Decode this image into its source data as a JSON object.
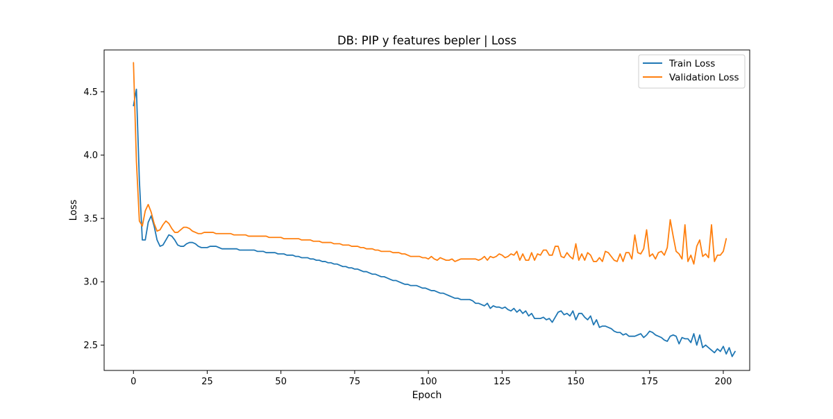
{
  "chart_data": {
    "type": "line",
    "title": "DB: PIP y features bepler | Loss",
    "xlabel": "Epoch",
    "ylabel": "Loss",
    "xlim": [
      -9.95,
      208.95
    ],
    "ylim": [
      2.3,
      4.83
    ],
    "xticks": [
      0,
      25,
      50,
      75,
      100,
      125,
      150,
      175,
      200
    ],
    "yticks": [
      2.5,
      3.0,
      3.5,
      4.0,
      4.5
    ],
    "grid": false,
    "legend_position": "top-right",
    "series": [
      {
        "name": "Train Loss",
        "color": "#1f77b4",
        "x_start": 0,
        "values": [
          4.39,
          4.52,
          3.8,
          3.33,
          3.33,
          3.47,
          3.52,
          3.44,
          3.33,
          3.28,
          3.29,
          3.33,
          3.37,
          3.36,
          3.33,
          3.29,
          3.28,
          3.28,
          3.3,
          3.31,
          3.31,
          3.3,
          3.28,
          3.27,
          3.27,
          3.27,
          3.28,
          3.28,
          3.28,
          3.27,
          3.26,
          3.26,
          3.26,
          3.26,
          3.26,
          3.26,
          3.25,
          3.25,
          3.25,
          3.25,
          3.25,
          3.25,
          3.24,
          3.24,
          3.24,
          3.23,
          3.23,
          3.23,
          3.23,
          3.22,
          3.22,
          3.22,
          3.21,
          3.21,
          3.21,
          3.2,
          3.2,
          3.19,
          3.19,
          3.19,
          3.18,
          3.18,
          3.17,
          3.17,
          3.16,
          3.16,
          3.15,
          3.15,
          3.14,
          3.14,
          3.13,
          3.12,
          3.12,
          3.11,
          3.11,
          3.1,
          3.1,
          3.09,
          3.08,
          3.08,
          3.07,
          3.06,
          3.06,
          3.05,
          3.04,
          3.04,
          3.03,
          3.02,
          3.01,
          3.01,
          3.0,
          2.99,
          2.98,
          2.98,
          2.97,
          2.97,
          2.97,
          2.96,
          2.95,
          2.95,
          2.94,
          2.93,
          2.93,
          2.92,
          2.91,
          2.91,
          2.9,
          2.89,
          2.88,
          2.87,
          2.87,
          2.86,
          2.86,
          2.86,
          2.86,
          2.85,
          2.83,
          2.83,
          2.82,
          2.81,
          2.83,
          2.79,
          2.81,
          2.8,
          2.8,
          2.79,
          2.8,
          2.78,
          2.77,
          2.79,
          2.76,
          2.78,
          2.75,
          2.77,
          2.73,
          2.75,
          2.71,
          2.71,
          2.71,
          2.72,
          2.7,
          2.71,
          2.68,
          2.72,
          2.76,
          2.77,
          2.74,
          2.75,
          2.73,
          2.77,
          2.7,
          2.75,
          2.75,
          2.72,
          2.7,
          2.73,
          2.66,
          2.7,
          2.64,
          2.65,
          2.65,
          2.64,
          2.63,
          2.61,
          2.6,
          2.6,
          2.58,
          2.59,
          2.57,
          2.57,
          2.57,
          2.58,
          2.59,
          2.56,
          2.58,
          2.61,
          2.6,
          2.58,
          2.57,
          2.56,
          2.54,
          2.53,
          2.57,
          2.58,
          2.57,
          2.51,
          2.56,
          2.55,
          2.55,
          2.52,
          2.59,
          2.5,
          2.58,
          2.48,
          2.5,
          2.48,
          2.46,
          2.44,
          2.47,
          2.45,
          2.49,
          2.43,
          2.48,
          2.41,
          2.45
        ]
      },
      {
        "name": "Validation Loss",
        "color": "#ff7f0e",
        "x_start": 0,
        "values": [
          4.73,
          3.95,
          3.48,
          3.44,
          3.56,
          3.61,
          3.55,
          3.46,
          3.4,
          3.41,
          3.45,
          3.48,
          3.46,
          3.42,
          3.39,
          3.39,
          3.41,
          3.43,
          3.43,
          3.42,
          3.4,
          3.39,
          3.38,
          3.38,
          3.39,
          3.39,
          3.39,
          3.39,
          3.38,
          3.38,
          3.38,
          3.38,
          3.38,
          3.38,
          3.37,
          3.37,
          3.37,
          3.37,
          3.37,
          3.36,
          3.36,
          3.36,
          3.36,
          3.36,
          3.36,
          3.36,
          3.35,
          3.35,
          3.35,
          3.35,
          3.35,
          3.34,
          3.34,
          3.34,
          3.34,
          3.34,
          3.34,
          3.33,
          3.33,
          3.33,
          3.33,
          3.32,
          3.32,
          3.32,
          3.31,
          3.31,
          3.31,
          3.31,
          3.3,
          3.3,
          3.3,
          3.29,
          3.29,
          3.29,
          3.28,
          3.28,
          3.28,
          3.27,
          3.27,
          3.26,
          3.26,
          3.26,
          3.25,
          3.25,
          3.24,
          3.24,
          3.24,
          3.24,
          3.23,
          3.23,
          3.23,
          3.22,
          3.22,
          3.21,
          3.2,
          3.2,
          3.2,
          3.2,
          3.19,
          3.19,
          3.18,
          3.2,
          3.18,
          3.17,
          3.19,
          3.18,
          3.17,
          3.17,
          3.18,
          3.16,
          3.17,
          3.18,
          3.18,
          3.18,
          3.18,
          3.18,
          3.18,
          3.17,
          3.18,
          3.2,
          3.17,
          3.2,
          3.19,
          3.2,
          3.22,
          3.21,
          3.19,
          3.2,
          3.22,
          3.21,
          3.24,
          3.17,
          3.22,
          3.17,
          3.17,
          3.23,
          3.17,
          3.22,
          3.21,
          3.25,
          3.25,
          3.21,
          3.21,
          3.28,
          3.28,
          3.2,
          3.19,
          3.23,
          3.2,
          3.18,
          3.3,
          3.17,
          3.22,
          3.17,
          3.23,
          3.21,
          3.16,
          3.16,
          3.19,
          3.16,
          3.24,
          3.23,
          3.2,
          3.17,
          3.16,
          3.22,
          3.16,
          3.23,
          3.23,
          3.18,
          3.37,
          3.23,
          3.22,
          3.26,
          3.41,
          3.2,
          3.22,
          3.18,
          3.23,
          3.24,
          3.21,
          3.27,
          3.49,
          3.36,
          3.24,
          3.22,
          3.18,
          3.45,
          3.16,
          3.21,
          3.14,
          3.28,
          3.33,
          3.2,
          3.22,
          3.19,
          3.45,
          3.16,
          3.21,
          3.21,
          3.24,
          3.34
        ]
      }
    ]
  }
}
